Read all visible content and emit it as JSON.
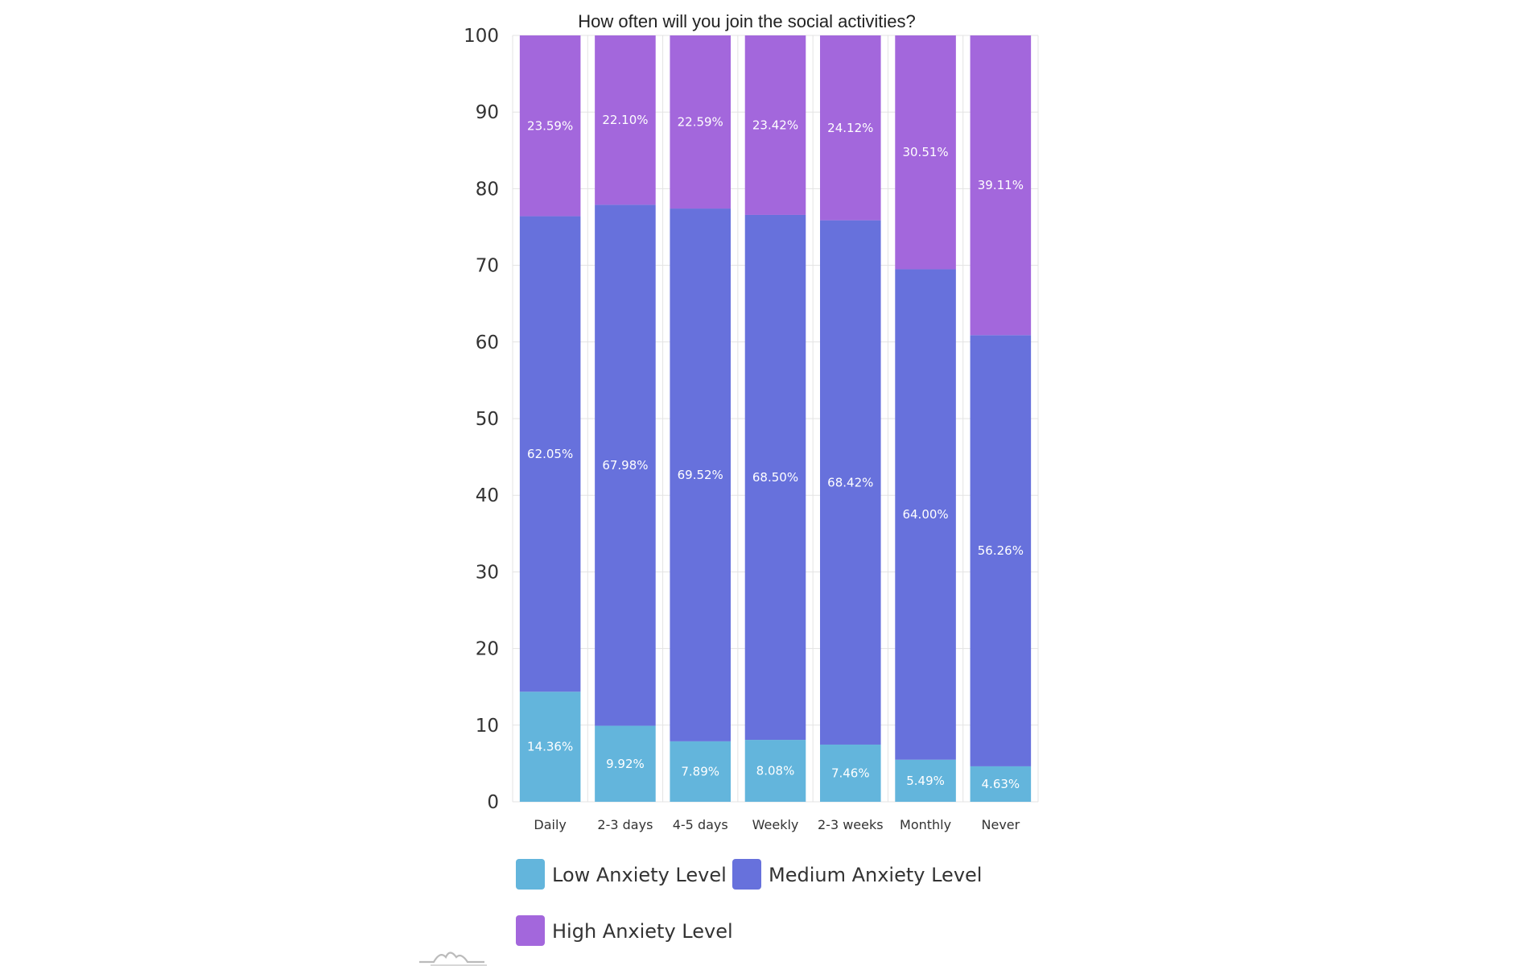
{
  "chart_data": {
    "type": "bar",
    "stacked": true,
    "title": "How often will you join the social activities?",
    "xlabel": "",
    "ylabel": "",
    "ylim": [
      0,
      100
    ],
    "yticks": [
      0,
      10,
      20,
      30,
      40,
      50,
      60,
      70,
      80,
      90,
      100
    ],
    "grid": true,
    "legend_position": "bottom",
    "categories": [
      "Daily",
      "2-3 days",
      "4-5 days",
      "Weekly",
      "2-3 weeks",
      "Monthly",
      "Never"
    ],
    "series": [
      {
        "name": "Low Anxiety Level",
        "color": "#63b5dc",
        "values": [
          14.36,
          9.92,
          7.89,
          8.08,
          7.46,
          5.49,
          4.63
        ],
        "labels": [
          "14.36%",
          "9.92%",
          "7.89%",
          "8.08%",
          "7.46%",
          "5.49%",
          "4.63%"
        ]
      },
      {
        "name": "Medium Anxiety Level",
        "color": "#6771dc",
        "values": [
          62.05,
          67.98,
          69.52,
          68.5,
          68.42,
          64.0,
          56.26
        ],
        "labels": [
          "62.05%",
          "67.98%",
          "69.52%",
          "68.50%",
          "68.42%",
          "64.00%",
          "56.26%"
        ]
      },
      {
        "name": "High Anxiety Level",
        "color": "#a367dc",
        "values": [
          23.59,
          22.1,
          22.59,
          23.42,
          24.12,
          30.51,
          39.11
        ],
        "labels": [
          "23.59%",
          "22.10%",
          "22.59%",
          "23.42%",
          "24.12%",
          "30.51%",
          "39.11%"
        ]
      }
    ]
  },
  "watermark_icon": "chart-logo-icon"
}
